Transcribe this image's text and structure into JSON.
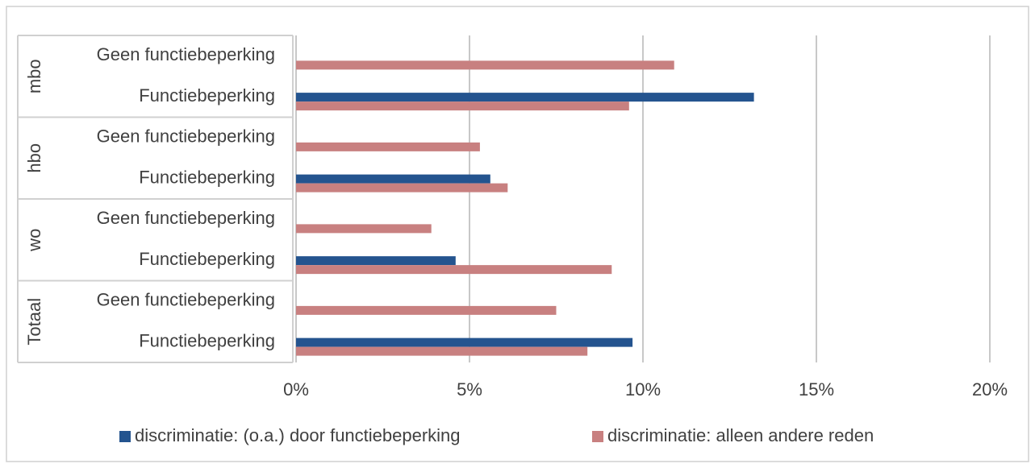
{
  "chart_data": {
    "type": "bar",
    "orientation": "horizontal",
    "groups": [
      {
        "label": "mbo",
        "categories": [
          "Geen functiebeperking",
          "Functiebeperking"
        ]
      },
      {
        "label": "hbo",
        "categories": [
          "Geen functiebeperking",
          "Functiebeperking"
        ]
      },
      {
        "label": "wo",
        "categories": [
          "Geen functiebeperking",
          "Functiebeperking"
        ]
      },
      {
        "label": "Totaal",
        "categories": [
          "Geen functiebeperking",
          "Functiebeperking"
        ]
      }
    ],
    "series": [
      {
        "name": "discriminatie: (o.a.) door functiebeperking",
        "color": "#24548f",
        "values": [
          0,
          13.2,
          0,
          5.6,
          0,
          4.6,
          0,
          9.7
        ]
      },
      {
        "name": "discriminatie: alleen andere reden",
        "color": "#c88080",
        "values": [
          10.9,
          9.6,
          5.3,
          6.1,
          3.9,
          9.1,
          7.5,
          8.4
        ]
      }
    ],
    "xlim": [
      0,
      20
    ],
    "xticks": [
      0,
      5,
      10,
      15,
      20
    ],
    "xtick_labels": [
      "0%",
      "5%",
      "10%",
      "15%",
      "20%"
    ],
    "grid": true,
    "legend_position": "bottom"
  }
}
